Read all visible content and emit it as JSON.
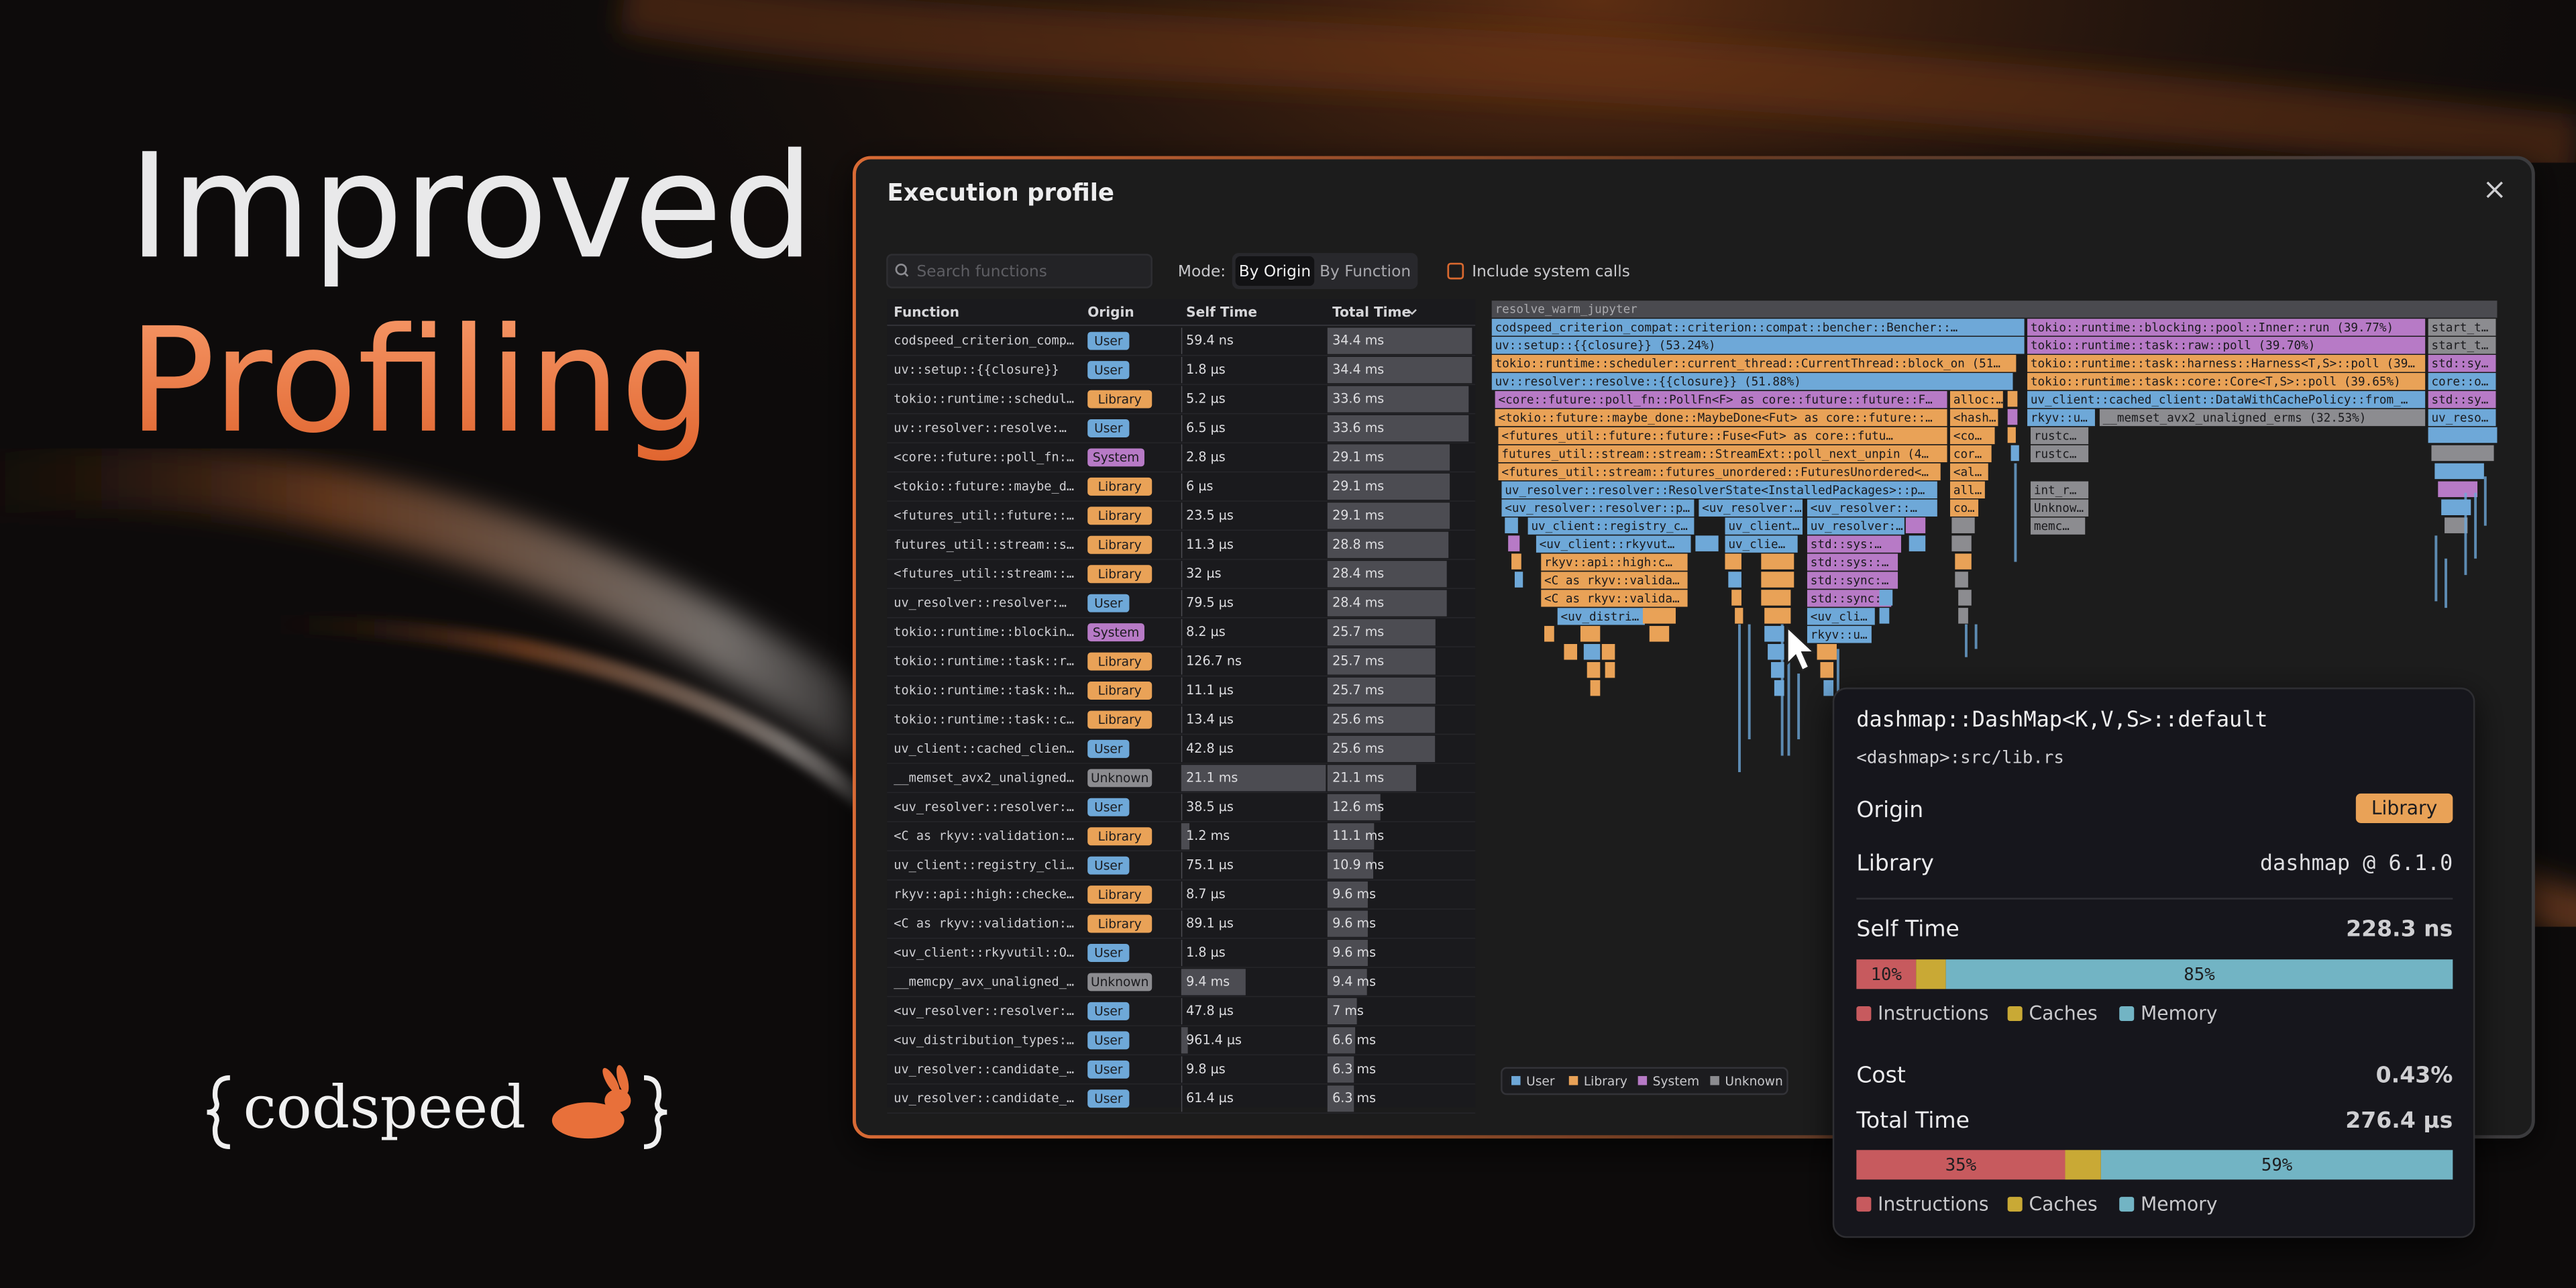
{
  "hero": {
    "line1": "Improved",
    "line2": "Profiling"
  },
  "logo": {
    "text": "codspeed"
  },
  "window": {
    "title": "Execution profile",
    "search_placeholder": "Search functions",
    "mode_label": "Mode:",
    "modes": [
      "By Origin",
      "By Function"
    ],
    "system_calls_label": "Include system calls"
  },
  "origins": [
    {
      "name": "User",
      "color": "#6ea8d8"
    },
    {
      "name": "Library",
      "color": "#e9a257"
    },
    {
      "name": "System",
      "color": "#b77ac6"
    },
    {
      "name": "Unknown",
      "color": "#8c8c90"
    }
  ],
  "table": {
    "headers": [
      "Function",
      "Origin",
      "Self Time",
      "Total Time"
    ],
    "rows": [
      [
        "codspeed_criterion_comp…",
        "User",
        "59.4 ns",
        "34.4 ms"
      ],
      [
        "uv::setup::{{closure}}",
        "User",
        "1.8 µs",
        "34.4 ms"
      ],
      [
        "tokio::runtime::schedul…",
        "Library",
        "5.2 µs",
        "33.6 ms"
      ],
      [
        "uv::resolver::resolve:…",
        "User",
        "6.5 µs",
        "33.6 ms"
      ],
      [
        "<core::future::poll_fn:…",
        "System",
        "2.8 µs",
        "29.1 ms"
      ],
      [
        "<tokio::future::maybe_d…",
        "Library",
        "6 µs",
        "29.1 ms"
      ],
      [
        "<futures_util::future::…",
        "Library",
        "23.5 µs",
        "29.1 ms"
      ],
      [
        "futures_util::stream::s…",
        "Library",
        "11.3 µs",
        "28.8 ms"
      ],
      [
        "<futures_util::stream::…",
        "Library",
        "32 µs",
        "28.4 ms"
      ],
      [
        "uv_resolver::resolver:…",
        "User",
        "79.5 µs",
        "28.4 ms"
      ],
      [
        "tokio::runtime::blockin…",
        "System",
        "8.2 µs",
        "25.7 ms"
      ],
      [
        "tokio::runtime::task::r…",
        "Library",
        "126.7 ns",
        "25.7 ms"
      ],
      [
        "tokio::runtime::task::h…",
        "Library",
        "11.1 µs",
        "25.7 ms"
      ],
      [
        "tokio::runtime::task::c…",
        "Library",
        "13.4 µs",
        "25.6 ms"
      ],
      [
        "uv_client::cached_clien…",
        "User",
        "42.8 µs",
        "25.6 ms"
      ],
      [
        "__memset_avx2_unaligned…",
        "Unknown",
        "21.1 ms",
        "21.1 ms"
      ],
      [
        "<uv_resolver::resolver:…",
        "User",
        "38.5 µs",
        "12.6 ms"
      ],
      [
        "<C as rkyv::validation:…",
        "Library",
        "1.2 ms",
        "11.1 ms"
      ],
      [
        "uv_client::registry_cli…",
        "User",
        "75.1 µs",
        "10.9 ms"
      ],
      [
        "rkyv::api::high::checke…",
        "Library",
        "8.7 µs",
        "9.6 ms"
      ],
      [
        "<C as rkyv::validation:…",
        "Library",
        "89.1 µs",
        "9.6 ms"
      ],
      [
        "<uv_client::rkyvutil::O…",
        "User",
        "1.8 µs",
        "9.6 ms"
      ],
      [
        "__memcpy_avx_unaligned_…",
        "Unknown",
        "9.4 ms",
        "9.4 ms"
      ],
      [
        "<uv_resolver::resolver:…",
        "User",
        "47.8 µs",
        "7 ms"
      ],
      [
        "<uv_distribution_types:…",
        "User",
        "961.4 µs",
        "6.6 ms"
      ],
      [
        "uv_resolver::candidate_…",
        "User",
        "9.8 µs",
        "6.3 ms"
      ],
      [
        "uv_resolver::candidate_…",
        "User",
        "61.4 µs",
        "6.3 ms"
      ]
    ]
  },
  "flamegraph": {
    "root": "resolve_warm_jupyter",
    "blocks": [
      "codspeed_criterion_compat::criterion::compat::bencher::Bencher::…",
      "tokio::runtime::blocking::pool::Inner::run (39.77%)",
      "start_t…",
      "uv::setup::{{closure}} (53.24%)",
      "tokio::runtime::task::raw::poll (39.70%)",
      "start_t…",
      "tokio::runtime::scheduler::current_thread::CurrentThread::block_on (51…",
      "tokio::runtime::task::harness::Harness<T,S>::poll (39…",
      "std::sy…",
      "uv::resolver::resolve::{{closure}} (51.88%)",
      "tokio::runtime::task::core::Core<T,S>::poll (39.65%)",
      "core::o…",
      "<core::future::poll_fn::PollFn<F> as core::future::future::F…",
      "alloc:…",
      "uv_client::cached_client::DataWithCachePolicy::from_…",
      "std::sy…",
      "<tokio::future::maybe_done::MaybeDone<Fut> as core::future::…",
      "<hash…",
      "rkyv::u…",
      "__memset_avx2_unaligned_erms (32.53%)",
      "uv_reso…",
      "<futures_util::future::future::Fuse<Fut> as core::futu…",
      "<co…",
      "rustc…",
      "futures_util::stream::stream::StreamExt::poll_next_unpin (4…",
      "cor…",
      "rustc…",
      "<futures_util::stream::futures_unordered::FuturesUnordered<…",
      "<al…",
      "uv_resolver::resolver::ResolverState<InstalledPackages>::p…",
      "all…",
      "int_r…",
      "<uv_resolver::resolver::p…",
      "<uv_resolver:…",
      "<uv_resolver::…",
      "co…",
      "Unknow…",
      "uv_client::registry_c…",
      "uv_client…",
      "uv_resolver:…",
      "memc…",
      "<uv_client::rkyvut…",
      "uv_clie…",
      "std::sys:…",
      "rkyv::api::high:c…",
      "std::sys::…",
      "<C as rkyv::valida…",
      "std::sync:…",
      "<C as rkyv::valida…",
      "std::sync:…",
      "<uv_distri…",
      "<uv_cli…",
      "rkyv::u…"
    ]
  },
  "tooltip": {
    "function": "dashmap::DashMap<K,V,S>::default",
    "location": "<dashmap>:src/lib.rs",
    "origin_label": "Origin",
    "origin_value": "Library",
    "library_label": "Library",
    "library_value": "dashmap @ 6.1.0",
    "self_time_label": "Self Time",
    "self_time_value": "228.3 ns",
    "self_breakdown": [
      {
        "value": 10,
        "label": "10%"
      },
      {
        "value": 5
      },
      {
        "value": 85,
        "label": "85%"
      }
    ],
    "cost_label": "Cost",
    "cost_value": "0.43%",
    "total_time_label": "Total Time",
    "total_time_value": "276.4 µs",
    "total_breakdown": [
      {
        "value": 35,
        "label": "35%"
      },
      {
        "value": 6
      },
      {
        "value": 59,
        "label": "59%"
      }
    ],
    "breakdown_legend": [
      {
        "name": "Instructions",
        "color": "#c75a5e"
      },
      {
        "name": "Caches",
        "color": "#c9a935"
      },
      {
        "name": "Memory",
        "color": "#72b4c4"
      }
    ]
  }
}
